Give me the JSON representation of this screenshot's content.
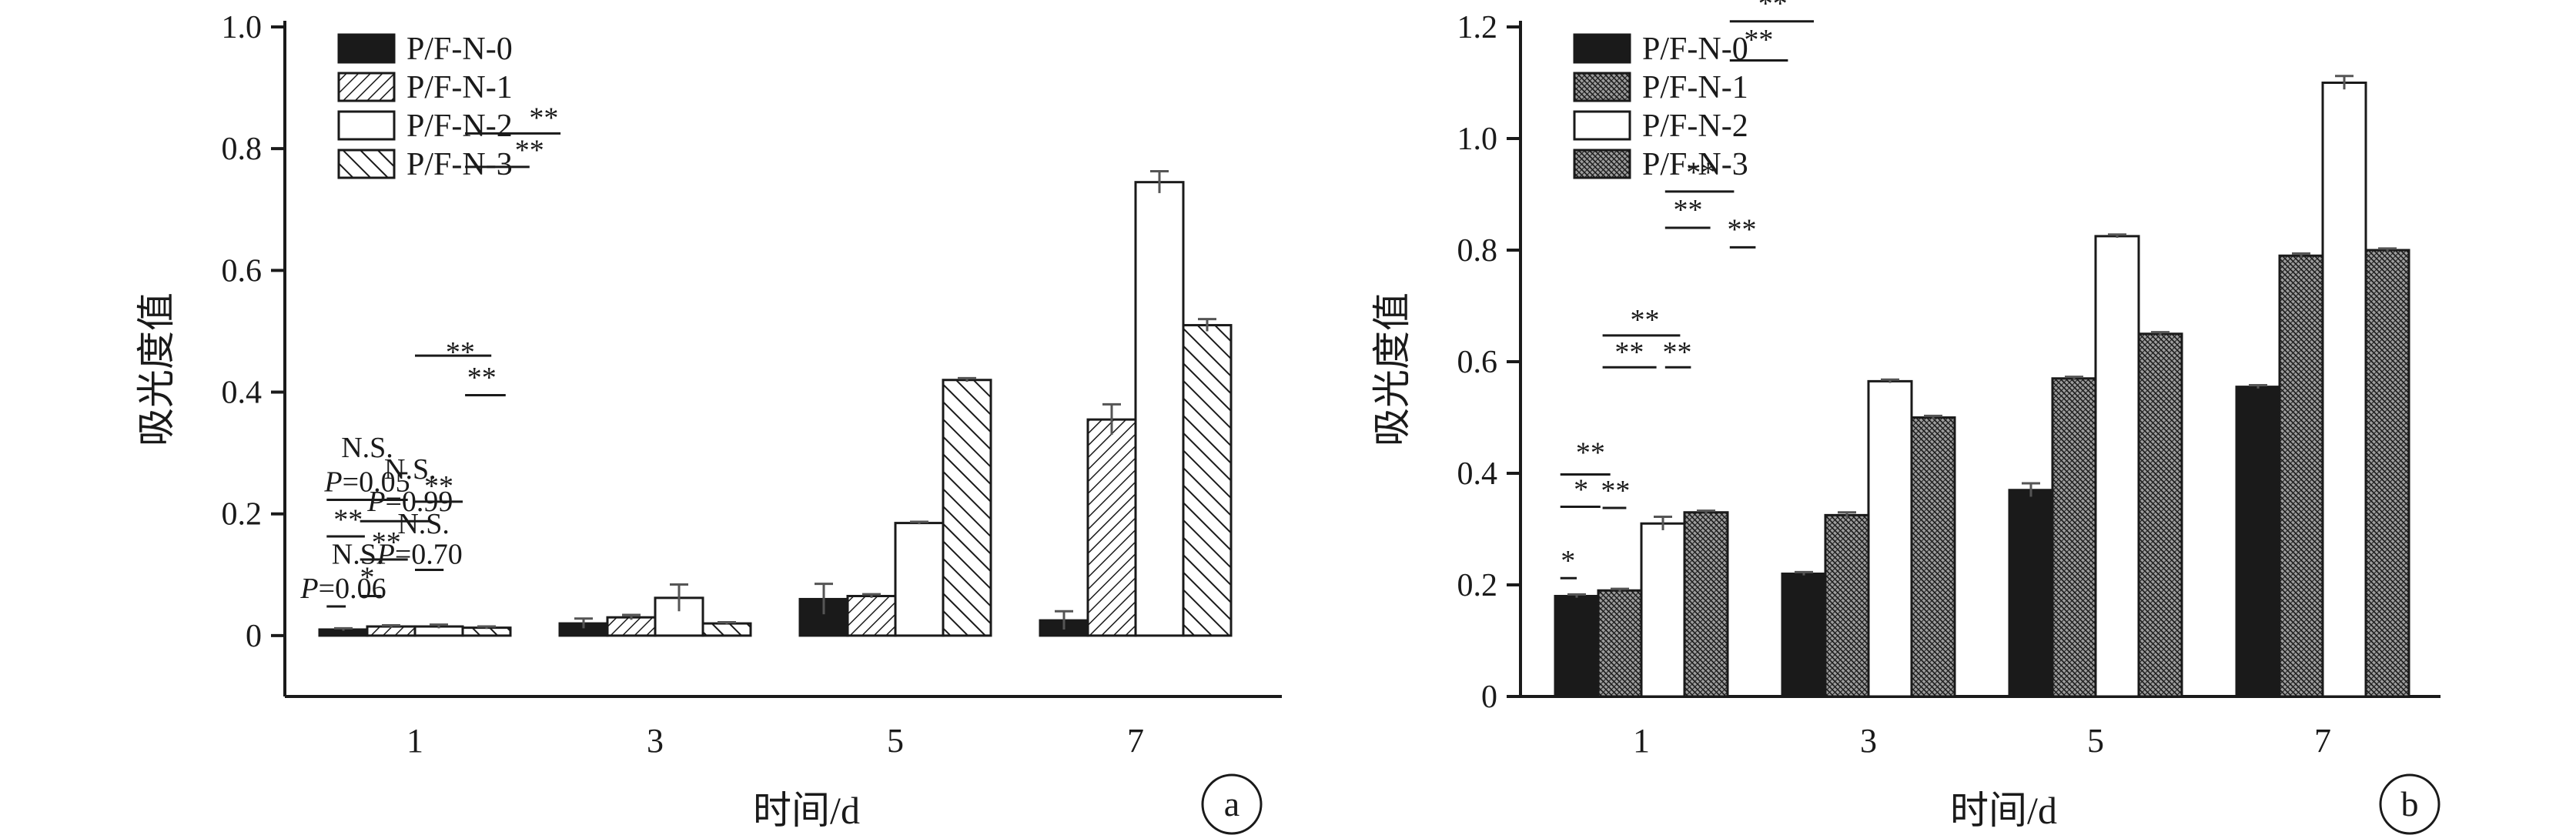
{
  "colors": {
    "ink": "#1a1a1a",
    "bar_solid": "#1a1a1a",
    "bar_empty": "#ffffff",
    "error_bar": "#555555"
  },
  "chart_data": [
    {
      "panel": "a",
      "type": "bar",
      "xlabel": "时间/d",
      "ylabel": "吸光度值",
      "categories": [
        "1",
        "3",
        "5",
        "7"
      ],
      "ylim": [
        -0.1,
        1.0
      ],
      "yticks": [
        0,
        0.2,
        0.4,
        0.6,
        0.8,
        1.0
      ],
      "ytick_labels": [
        "0",
        "0.2",
        "0.4",
        "0.6",
        "0.8",
        "1.0"
      ],
      "legend_position": "top-left",
      "series": [
        {
          "name": "P/F-N-0",
          "fill": "solid",
          "values": [
            0.01,
            0.02,
            0.06,
            0.025
          ],
          "errors": [
            0.002,
            0.008,
            0.025,
            0.015
          ]
        },
        {
          "name": "P/F-N-1",
          "fill": "hatch-dense",
          "values": [
            0.015,
            0.03,
            0.065,
            0.355
          ],
          "errors": [
            0.002,
            0.004,
            0.003,
            0.025
          ]
        },
        {
          "name": "P/F-N-2",
          "fill": "empty",
          "values": [
            0.015,
            0.062,
            0.185,
            0.745
          ],
          "errors": [
            0.003,
            0.022,
            0.002,
            0.018
          ]
        },
        {
          "name": "P/F-N-3",
          "fill": "hatch-wide",
          "values": [
            0.013,
            0.02,
            0.42,
            0.51
          ],
          "errors": [
            0.002,
            0.002,
            0.003,
            0.01
          ]
        }
      ],
      "annotations": [
        {
          "text": "N.S.",
          "x": 1.0,
          "y": 0.293
        },
        {
          "text": "P=0.05",
          "x": 1.0,
          "y": 0.237,
          "italic_prefix": "P"
        },
        {
          "text": "**",
          "x": 0.6,
          "y": 0.175
        },
        {
          "text": "N.S.",
          "x": 0.8,
          "y": 0.118
        },
        {
          "text": "P=0.06",
          "x": 0.5,
          "y": 0.062,
          "italic_prefix": "P"
        },
        {
          "text": "N.S.",
          "x": 1.9,
          "y": 0.258
        },
        {
          "text": "P=0.99",
          "x": 1.9,
          "y": 0.205,
          "italic_prefix": "P"
        },
        {
          "text": "**",
          "x": 1.4,
          "y": 0.138
        },
        {
          "text": "*",
          "x": 1.0,
          "y": 0.08
        },
        {
          "text": "**",
          "x": 2.95,
          "y": 0.45
        },
        {
          "text": "**",
          "x": 2.5,
          "y": 0.23
        },
        {
          "text": "N.S.",
          "x": 2.18,
          "y": 0.168
        },
        {
          "text": "P=0.70",
          "x": 2.1,
          "y": 0.118,
          "italic_prefix": "P"
        },
        {
          "text": "**",
          "x": 4.7,
          "y": 0.835
        },
        {
          "text": "**",
          "x": 4.4,
          "y": 0.782
        },
        {
          "text": "**",
          "x": 3.4,
          "y": 0.408
        }
      ],
      "lines": [
        {
          "x1": 0.15,
          "x2": 1.85,
          "y": 0.223
        },
        {
          "x1": 0.15,
          "x2": 0.95,
          "y": 0.163
        },
        {
          "x1": 0.15,
          "x2": 0.55,
          "y": 0.048
        },
        {
          "x1": 0.85,
          "x2": 2.35,
          "y": 0.188
        },
        {
          "x1": 0.85,
          "x2": 1.85,
          "y": 0.125
        },
        {
          "x1": 0.85,
          "x2": 1.3,
          "y": 0.065
        },
        {
          "x1": 2.0,
          "x2": 2.6,
          "y": 0.108
        },
        {
          "x1": 2.0,
          "x2": 3.0,
          "y": 0.22
        },
        {
          "x1": 2.0,
          "x2": 3.6,
          "y": 0.46
        },
        {
          "x1": 3.05,
          "x2": 4.4,
          "y": 0.77
        },
        {
          "x1": 3.05,
          "x2": 5.05,
          "y": 0.825
        },
        {
          "x1": 3.05,
          "x2": 3.9,
          "y": 0.395
        }
      ],
      "panel_label": "a"
    },
    {
      "panel": "b",
      "type": "bar",
      "xlabel": "时间/d",
      "ylabel": "吸光度值",
      "categories": [
        "1",
        "3",
        "5",
        "7"
      ],
      "ylim": [
        0,
        1.2
      ],
      "yticks": [
        0,
        0.2,
        0.4,
        0.6,
        0.8,
        1.0,
        1.2
      ],
      "ytick_labels": [
        "0",
        "0.2",
        "0.4",
        "0.6",
        "0.8",
        "1.0",
        "1.2"
      ],
      "legend_position": "top-left",
      "series": [
        {
          "name": "P/F-N-0",
          "fill": "solid",
          "values": [
            0.18,
            0.22,
            0.37,
            0.555
          ],
          "errors": [
            0.003,
            0.003,
            0.012,
            0.003
          ]
        },
        {
          "name": "P/F-N-1",
          "fill": "hatch-fine",
          "values": [
            0.19,
            0.325,
            0.57,
            0.79
          ],
          "errors": [
            0.003,
            0.005,
            0.003,
            0.004
          ]
        },
        {
          "name": "P/F-N-2",
          "fill": "empty",
          "values": [
            0.31,
            0.565,
            0.825,
            1.1
          ],
          "errors": [
            0.012,
            0.003,
            0.003,
            0.012
          ]
        },
        {
          "name": "P/F-N-3",
          "fill": "hatch-fine",
          "values": [
            0.33,
            0.5,
            0.65,
            0.8
          ],
          "errors": [
            0.003,
            0.003,
            0.003,
            0.003
          ]
        }
      ],
      "annotations": [
        {
          "text": "*",
          "x": 0.3,
          "y": 0.226
        },
        {
          "text": "*",
          "x": 0.6,
          "y": 0.354
        },
        {
          "text": "**",
          "x": 0.82,
          "y": 0.42
        },
        {
          "text": "**",
          "x": 1.4,
          "y": 0.352
        },
        {
          "text": "**",
          "x": 1.72,
          "y": 0.6
        },
        {
          "text": "**",
          "x": 2.08,
          "y": 0.658
        },
        {
          "text": "**",
          "x": 2.83,
          "y": 0.6
        },
        {
          "text": "**",
          "x": 3.08,
          "y": 0.855
        },
        {
          "text": "**",
          "x": 3.38,
          "y": 0.922
        },
        {
          "text": "**",
          "x": 4.33,
          "y": 0.82
        },
        {
          "text": "**",
          "x": 4.72,
          "y": 1.16
        },
        {
          "text": "**",
          "x": 5.05,
          "y": 1.225
        }
      ],
      "lines": [
        {
          "x1": 0.12,
          "x2": 0.5,
          "y": 0.212
        },
        {
          "x1": 0.12,
          "x2": 1.05,
          "y": 0.34
        },
        {
          "x1": 0.12,
          "x2": 1.28,
          "y": 0.398
        },
        {
          "x1": 1.1,
          "x2": 1.65,
          "y": 0.338
        },
        {
          "x1": 1.1,
          "x2": 2.35,
          "y": 0.59
        },
        {
          "x1": 1.1,
          "x2": 2.9,
          "y": 0.647
        },
        {
          "x1": 2.55,
          "x2": 3.15,
          "y": 0.59
        },
        {
          "x1": 2.55,
          "x2": 3.6,
          "y": 0.84
        },
        {
          "x1": 2.55,
          "x2": 4.15,
          "y": 0.905
        },
        {
          "x1": 4.05,
          "x2": 4.65,
          "y": 0.805
        },
        {
          "x1": 4.05,
          "x2": 5.4,
          "y": 1.14
        },
        {
          "x1": 4.05,
          "x2": 6.0,
          "y": 1.21
        }
      ],
      "panel_label": "b"
    }
  ]
}
